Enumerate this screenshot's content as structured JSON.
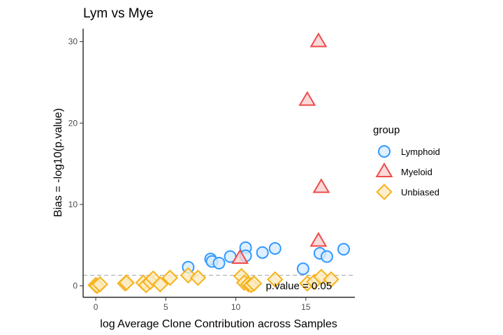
{
  "chart_data": {
    "type": "scatter",
    "title": "Lym vs Mye",
    "xlabel": "log Average Clone Contribution across Samples",
    "ylabel": "Bias = -log10(p.value)",
    "xlim": [
      -0.9,
      18.5
    ],
    "ylim": [
      -1.4,
      31.6
    ],
    "x_ticks": [
      0,
      5,
      10,
      15
    ],
    "y_ticks": [
      0,
      10,
      20,
      30
    ],
    "grid": false,
    "legend": {
      "title": "group",
      "position": "right"
    },
    "reference_line": {
      "y": 1.3,
      "style": "dashed",
      "color": "#b3b3b3"
    },
    "annotation": {
      "text": "p.value = 0.05",
      "x": 14.5,
      "y": 0
    },
    "series": [
      {
        "name": "Lymphoid",
        "shape": "circle",
        "stroke": "#3399ff",
        "fill": "#d6ebff",
        "points": [
          [
            6.6,
            2.3
          ],
          [
            8.2,
            3.3
          ],
          [
            8.3,
            3.0
          ],
          [
            8.8,
            2.8
          ],
          [
            9.6,
            3.6
          ],
          [
            10.7,
            4.7
          ],
          [
            10.7,
            3.7
          ],
          [
            11.9,
            4.1
          ],
          [
            12.8,
            4.6
          ],
          [
            14.8,
            2.1
          ],
          [
            16.0,
            4.0
          ],
          [
            16.5,
            3.6
          ],
          [
            17.7,
            4.5
          ]
        ]
      },
      {
        "name": "Myeloid",
        "shape": "triangle",
        "stroke": "#ee4b4b",
        "fill": "#f9d0d0",
        "points": [
          [
            10.3,
            3.4
          ],
          [
            15.1,
            22.8
          ],
          [
            15.9,
            30.0
          ],
          [
            16.1,
            12.1
          ],
          [
            15.9,
            5.5
          ]
        ]
      },
      {
        "name": "Unbiased",
        "shape": "diamond",
        "stroke": "#f6b21b",
        "fill": "#fdebc1",
        "points": [
          [
            0.0,
            0.1
          ],
          [
            0.1,
            0.0
          ],
          [
            0.3,
            0.2
          ],
          [
            2.1,
            0.3
          ],
          [
            2.2,
            0.4
          ],
          [
            3.4,
            0.4
          ],
          [
            3.6,
            0.1
          ],
          [
            3.9,
            0.5
          ],
          [
            4.1,
            0.9
          ],
          [
            4.6,
            0.2
          ],
          [
            5.3,
            1.0
          ],
          [
            6.6,
            1.3
          ],
          [
            7.3,
            1.0
          ],
          [
            10.4,
            1.2
          ],
          [
            10.6,
            0.4
          ],
          [
            10.9,
            0.2
          ],
          [
            11.1,
            0.1
          ],
          [
            11.3,
            0.3
          ],
          [
            12.8,
            0.8
          ],
          [
            15.1,
            0.3
          ],
          [
            15.6,
            0.5
          ],
          [
            16.1,
            1.1
          ],
          [
            16.8,
            0.8
          ]
        ]
      }
    ]
  }
}
